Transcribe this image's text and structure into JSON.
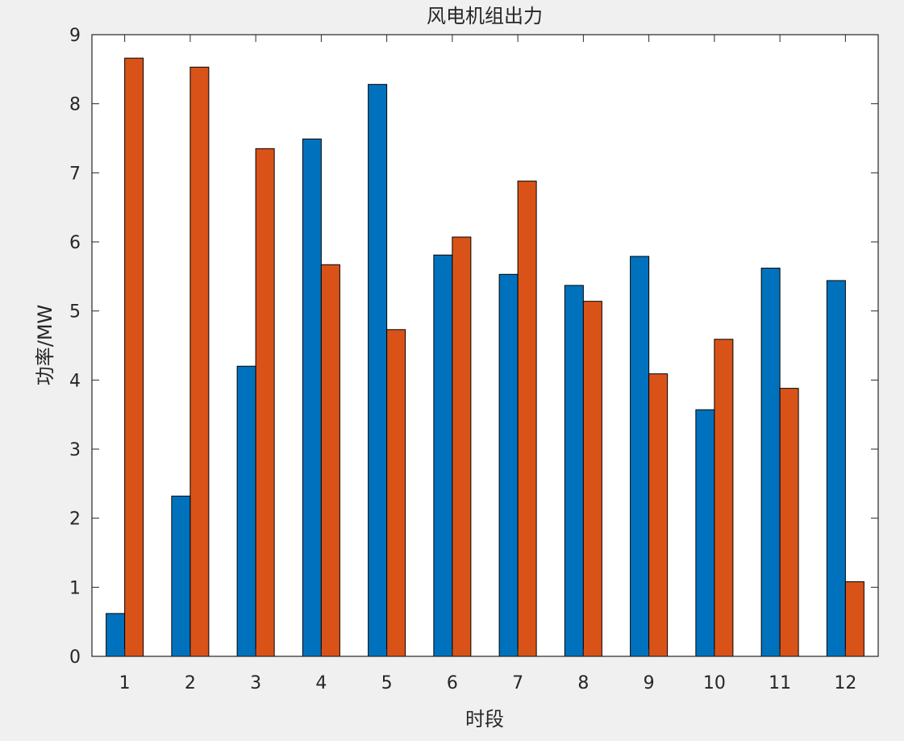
{
  "chart_data": {
    "type": "bar",
    "title": "风电机组出力",
    "xlabel": "时段",
    "ylabel": "功率/MW",
    "categories": [
      "1",
      "2",
      "3",
      "4",
      "5",
      "6",
      "7",
      "8",
      "9",
      "10",
      "11",
      "12"
    ],
    "ylim": [
      0,
      9
    ],
    "yticks": [
      0,
      1,
      2,
      3,
      4,
      5,
      6,
      7,
      8,
      9
    ],
    "grid": false,
    "series": [
      {
        "color": "#0072BD",
        "values": [
          0.62,
          2.32,
          4.2,
          7.49,
          8.28,
          5.81,
          5.53,
          5.37,
          5.79,
          3.57,
          5.62,
          5.44
        ]
      },
      {
        "color": "#D95319",
        "values": [
          8.66,
          8.53,
          7.35,
          5.67,
          4.73,
          6.07,
          6.88,
          5.14,
          4.09,
          4.59,
          3.88,
          1.08
        ]
      }
    ]
  }
}
